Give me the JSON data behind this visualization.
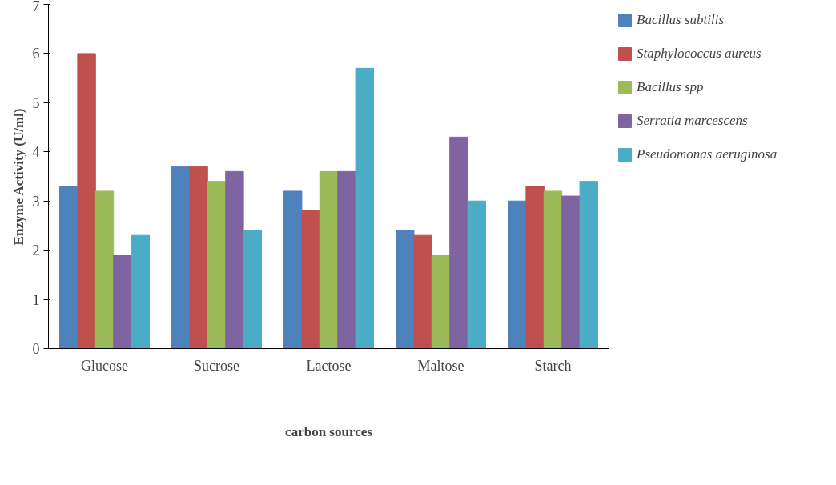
{
  "chart_data": {
    "type": "bar",
    "xlabel": "carbon sources",
    "ylabel": "Enzyme Activity (U/ml)",
    "categories": [
      "Glucose",
      "Sucrose",
      "Lactose",
      "Maltose",
      "Starch"
    ],
    "series": [
      {
        "name": "Bacillus subtilis",
        "color": "#4f81bd",
        "values": [
          3.3,
          3.7,
          3.2,
          2.4,
          3.0
        ]
      },
      {
        "name": "Staphylococcus aureus",
        "color": "#c0504d",
        "values": [
          6.0,
          3.7,
          2.8,
          2.3,
          3.3
        ]
      },
      {
        "name": "Bacillus spp",
        "color": "#9bbb59",
        "values": [
          3.2,
          3.4,
          3.6,
          1.9,
          3.2
        ]
      },
      {
        "name": "Serratia marcescens",
        "color": "#8064a2",
        "values": [
          1.9,
          3.6,
          3.6,
          4.3,
          3.1
        ]
      },
      {
        "name": "Pseudomonas aeruginosa",
        "color": "#4bacc6",
        "values": [
          2.3,
          2.4,
          5.7,
          3.0,
          3.4
        ]
      }
    ],
    "ylim": [
      0,
      7
    ],
    "yticks": [
      0,
      1,
      2,
      3,
      4,
      5,
      6,
      7
    ],
    "grid": false,
    "legend": "top right"
  }
}
